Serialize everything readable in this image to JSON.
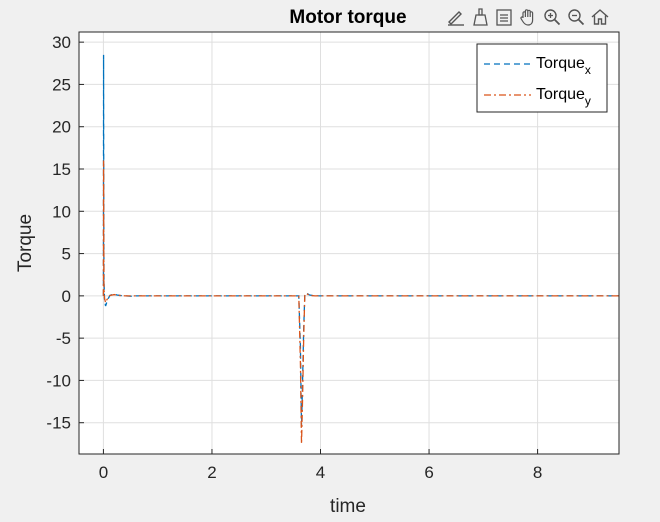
{
  "toolbar": {
    "icons": [
      "data-tip-edit-icon",
      "brush-icon",
      "legend-icon",
      "pan-hand-icon",
      "zoom-in-icon",
      "zoom-out-icon",
      "home-icon"
    ]
  },
  "chart_data": {
    "type": "line",
    "title": "Motor torque",
    "xlabel": "time",
    "ylabel": "Torque",
    "xlim": [
      -0.45,
      9.5
    ],
    "ylim": [
      -18.7,
      31.2
    ],
    "xticks": [
      0,
      2,
      4,
      6,
      8
    ],
    "yticks": [
      30,
      25,
      20,
      15,
      10,
      5,
      0,
      -5,
      -10,
      -15
    ],
    "grid": true,
    "legend_position": "top-right",
    "series": [
      {
        "name": "Torque",
        "subscript": "x",
        "color": "#0072BD",
        "line_style": "dashed",
        "x": [
          0.0,
          0.003,
          0.006,
          0.01,
          0.02,
          0.04,
          0.06,
          0.09,
          0.12,
          0.16,
          0.2,
          0.25,
          0.3,
          0.4,
          0.5,
          0.6,
          0.8,
          1.0,
          2.0,
          3.0,
          3.6,
          3.63,
          3.65,
          3.67,
          3.69,
          3.71,
          3.73,
          3.76,
          3.8,
          3.9,
          4.0,
          5.0,
          6.0,
          7.0,
          8.0,
          9.0,
          9.5
        ],
        "y": [
          0.0,
          28.5,
          14.0,
          2.0,
          -0.5,
          -1.2,
          -0.8,
          -0.3,
          0.05,
          0.15,
          0.2,
          0.1,
          0.05,
          0.0,
          -0.05,
          0.0,
          0.0,
          0.0,
          0.0,
          0.0,
          0.0,
          -6.0,
          -15.5,
          -10.0,
          -4.0,
          0.1,
          0.35,
          0.25,
          0.1,
          0.0,
          0.0,
          0.0,
          0.0,
          0.0,
          0.0,
          0.0,
          0.0
        ]
      },
      {
        "name": "Torque",
        "subscript": "y",
        "color": "#D95319",
        "line_style": "dashdot",
        "x": [
          0.0,
          0.003,
          0.006,
          0.01,
          0.02,
          0.04,
          0.06,
          0.09,
          0.12,
          0.16,
          0.2,
          0.25,
          0.3,
          0.4,
          0.5,
          0.6,
          0.8,
          1.0,
          2.0,
          3.0,
          3.6,
          3.63,
          3.65,
          3.67,
          3.69,
          3.71,
          3.73,
          3.76,
          3.8,
          3.9,
          4.0,
          5.0,
          6.0,
          7.0,
          8.0,
          9.0,
          9.5
        ],
        "y": [
          0.0,
          16.0,
          8.0,
          1.0,
          -0.3,
          -0.8,
          -0.5,
          -0.2,
          0.05,
          0.1,
          0.15,
          0.1,
          0.05,
          0.0,
          0.0,
          0.0,
          0.0,
          0.0,
          0.0,
          0.0,
          0.0,
          -8.0,
          -17.5,
          -12.0,
          -5.0,
          0.0,
          0.3,
          0.2,
          0.05,
          0.0,
          0.0,
          0.0,
          0.0,
          0.0,
          0.0,
          0.0,
          0.0
        ]
      }
    ]
  }
}
